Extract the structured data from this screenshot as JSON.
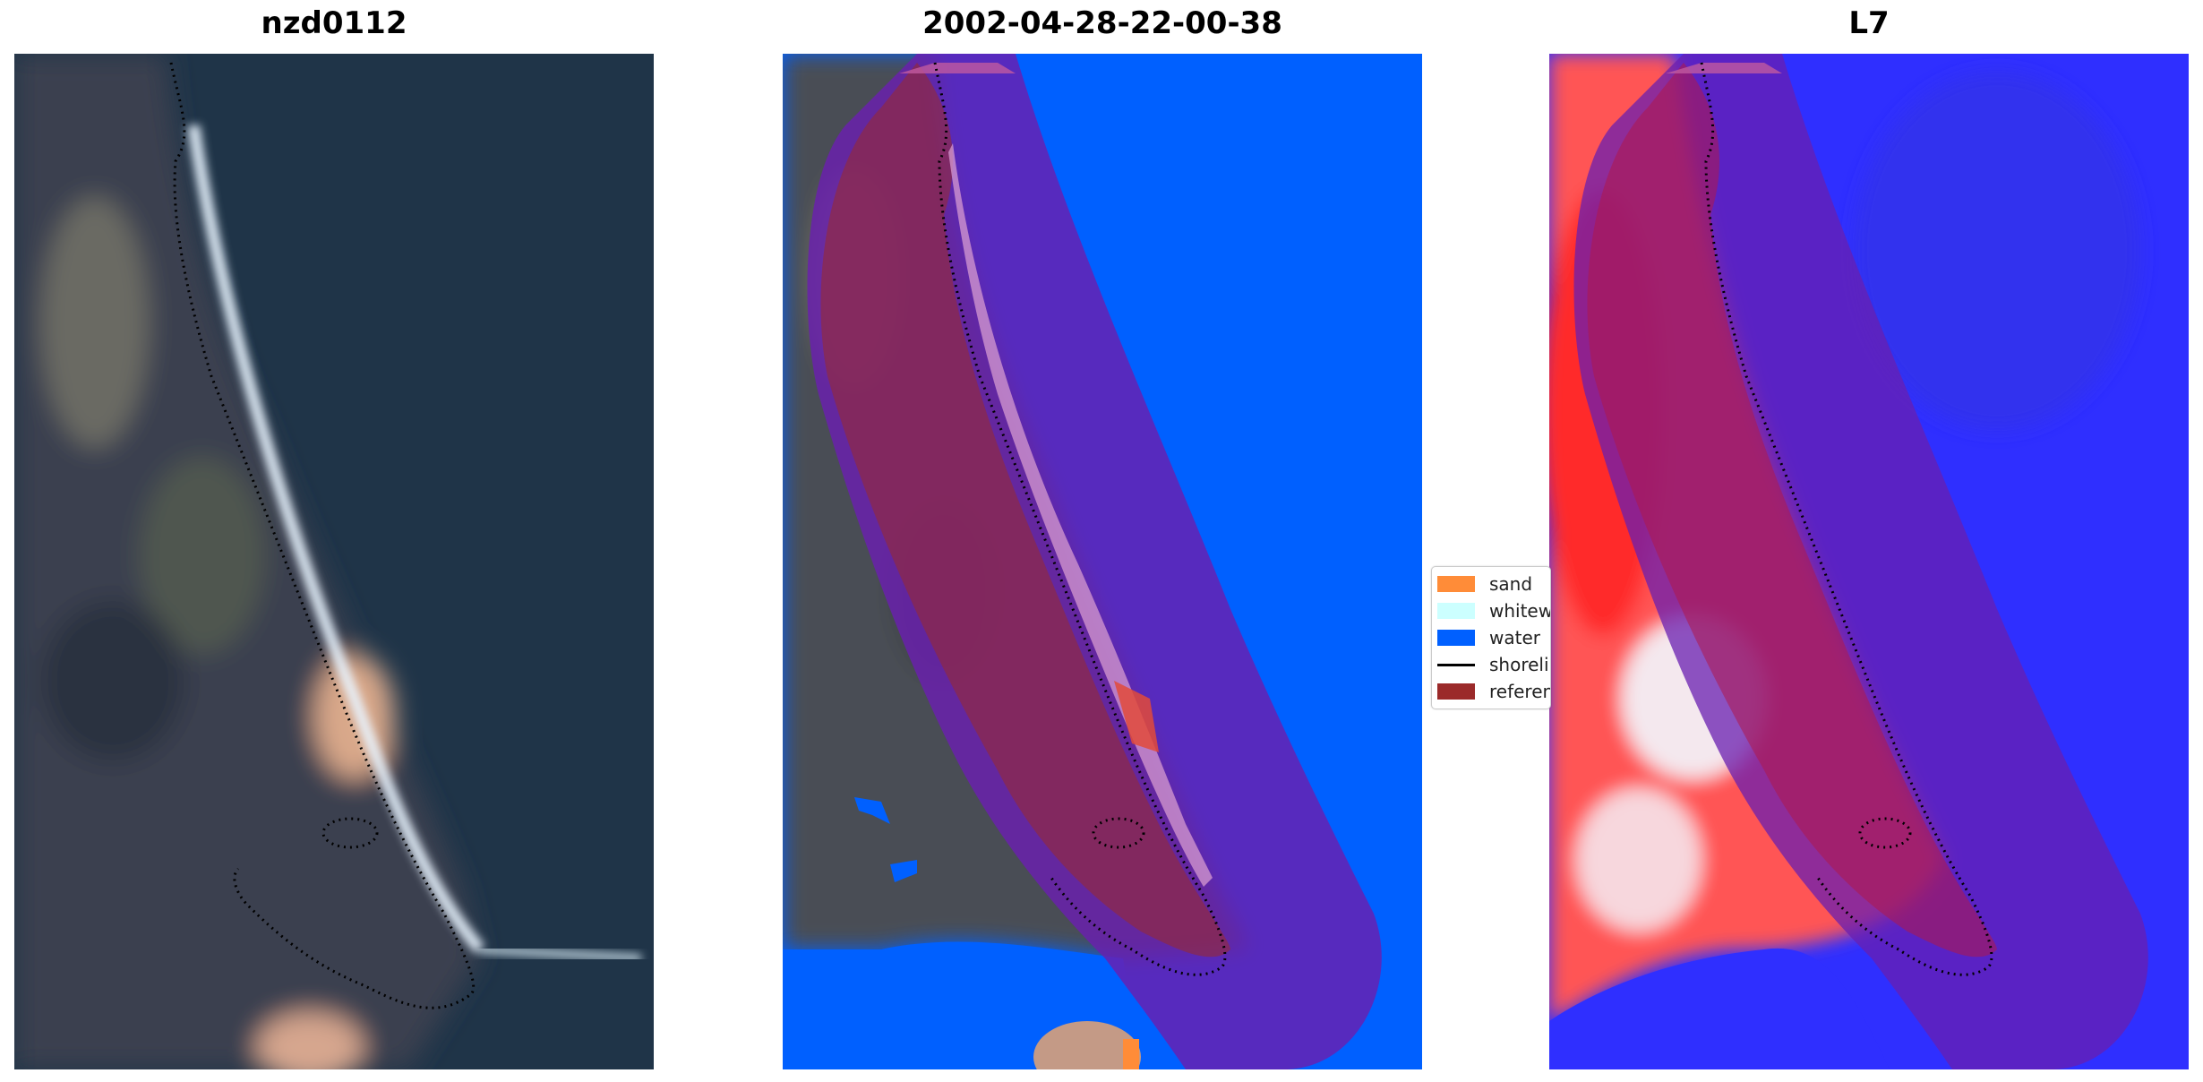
{
  "panels": {
    "left": {
      "title": "nzd0112"
    },
    "middle": {
      "title": "2002-04-28-22-00-38"
    },
    "right": {
      "title": "L7"
    }
  },
  "legend": {
    "items": [
      {
        "label": "sand",
        "color": "#ff8c38",
        "kind": "patch"
      },
      {
        "label": "whitewater",
        "color": "#ccffff",
        "kind": "patch"
      },
      {
        "label": "water",
        "color": "#0060ff",
        "kind": "patch"
      },
      {
        "label": "shoreline",
        "color": "#000000",
        "kind": "line"
      },
      {
        "label": "reference",
        "color": "#9b2a2a",
        "kind": "patch"
      }
    ]
  },
  "colors": {
    "water": "#0060ff",
    "buffer_overlay": "#6a1fb0",
    "reference": "#9b2a2a",
    "ocean_rgb": "#1f3448",
    "land_rgb": "#3a4150",
    "index_high": "#ff1a1a",
    "index_low": "#2222ff"
  }
}
